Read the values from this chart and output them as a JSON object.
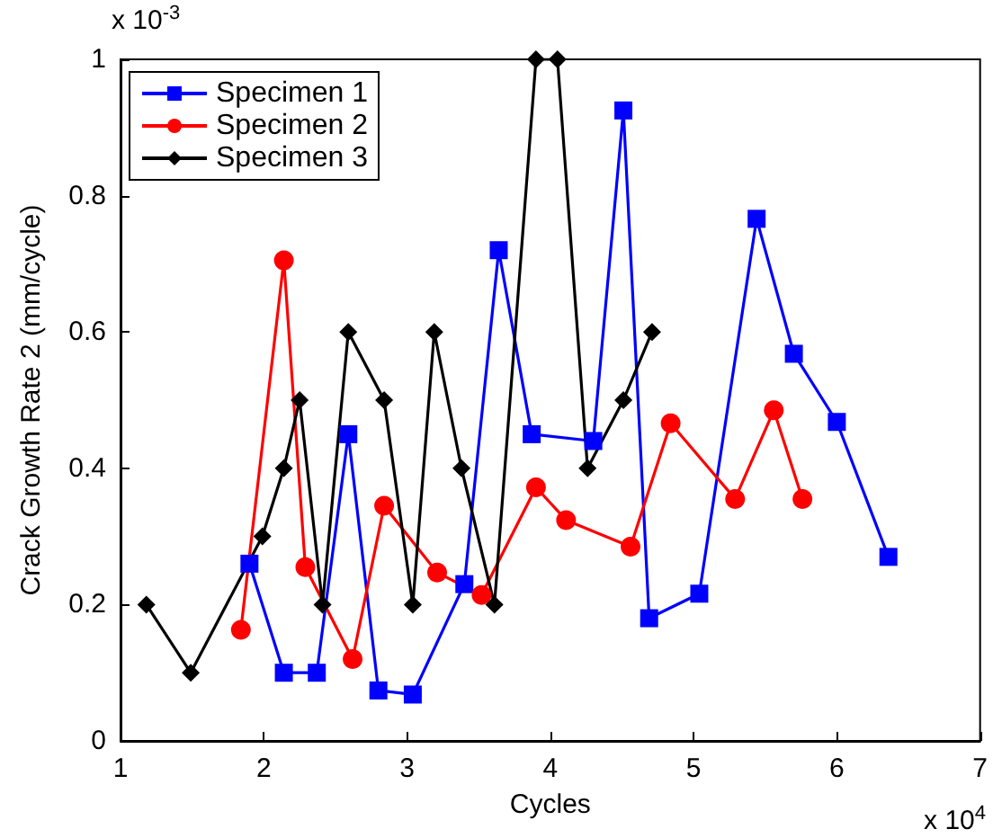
{
  "chart_data": {
    "type": "line",
    "xlabel": "Cycles",
    "ylabel": "Crack Growth Rate 2 (mm/cycle)",
    "annotations": [
      "x 10$^{-3}$",
      "x 10$^{4}$"
    ],
    "xlim": [
      1,
      7
    ],
    "xticks": [
      1,
      2,
      3,
      4,
      5,
      6,
      7
    ],
    "ylim": [
      0,
      1
    ],
    "yticks": [
      0,
      0.2,
      0.4,
      0.6,
      0.8,
      1
    ],
    "grid": false,
    "legend": "top left",
    "line_style": "solid",
    "series": [
      {
        "name": "Specimen 1",
        "color": "#0000ff",
        "marker": "square",
        "x": [
          1.9,
          2.14,
          2.37,
          2.59,
          2.8,
          3.04,
          3.4,
          3.64,
          3.87,
          4.3,
          4.51,
          4.69,
          5.04,
          5.44,
          5.7,
          6.0,
          6.36
        ],
        "values": [
          0.26,
          0.1,
          0.1,
          0.45,
          0.074,
          0.068,
          0.23,
          0.72,
          0.45,
          0.44,
          0.925,
          0.18,
          0.216,
          0.766,
          0.568,
          0.468,
          0.27
        ]
      },
      {
        "name": "Specimen 2",
        "color": "#ff0000",
        "marker": "circle",
        "x": [
          1.84,
          2.14,
          2.29,
          2.62,
          2.84,
          3.21,
          3.52,
          3.9,
          4.11,
          4.56,
          4.84,
          5.29,
          5.56,
          5.76
        ],
        "values": [
          0.163,
          0.705,
          0.255,
          0.12,
          0.345,
          0.247,
          0.214,
          0.372,
          0.324,
          0.285,
          0.466,
          0.355,
          0.485,
          0.355
        ]
      },
      {
        "name": "Specimen 3",
        "color": "#000000",
        "marker": "diamond",
        "x": [
          1.18,
          1.49,
          1.99,
          2.14,
          2.25,
          2.41,
          2.59,
          2.84,
          3.04,
          3.19,
          3.38,
          3.61,
          3.9,
          4.05,
          4.26,
          4.51,
          4.71
        ],
        "values": [
          0.2,
          0.1,
          0.3,
          0.4,
          0.5,
          0.2,
          0.6,
          0.5,
          0.2,
          0.6,
          0.4,
          0.2,
          1.0,
          1.0,
          0.4,
          0.5,
          0.6
        ]
      }
    ]
  }
}
